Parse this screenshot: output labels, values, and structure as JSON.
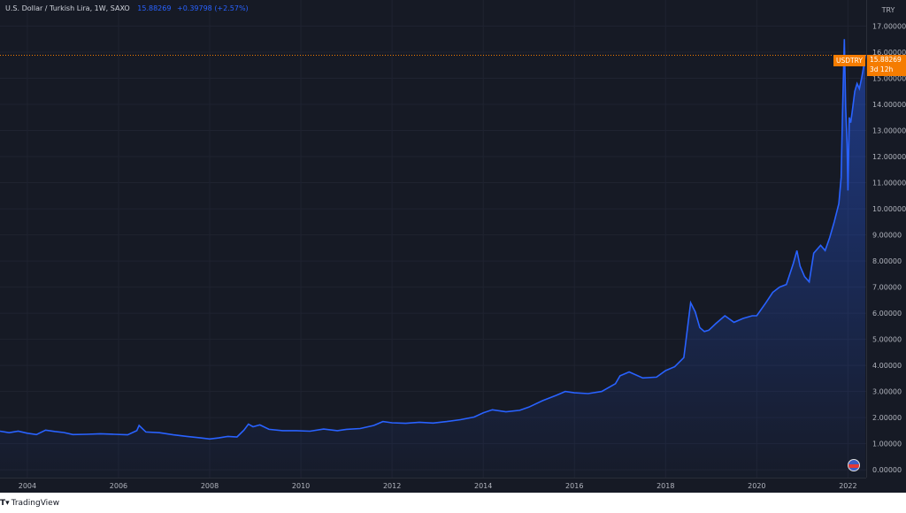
{
  "legend": {
    "title": "U.S. Dollar / Turkish Lira, 1W, SAXO",
    "last_value": "15.88269",
    "change": "+0.39798 (+2.57%)"
  },
  "price_badge": {
    "symbol": "USDTRY",
    "price": "15.88269",
    "countdown": "3d 12h"
  },
  "currency": "TRY",
  "footer": {
    "brand": "TradingView"
  },
  "colors": {
    "background": "#161a25",
    "line": "#2962ff",
    "badge": "#f57c00",
    "text": "#b2b5be",
    "grid": "#1f2330"
  },
  "icons": {
    "flag": "us-flag-icon",
    "logo": "tradingview-logo-icon"
  },
  "chart_data": {
    "type": "area",
    "title": "U.S. Dollar / Turkish Lira, 1W, SAXO",
    "xlabel": "",
    "ylabel": "",
    "xlim": [
      2003.4,
      2022.4
    ],
    "ylim": [
      -0.3,
      18.0
    ],
    "y_ticks": [
      "0.00000",
      "1.00000",
      "2.00000",
      "3.00000",
      "4.00000",
      "5.00000",
      "6.00000",
      "7.00000",
      "8.00000",
      "9.00000",
      "10.00000",
      "11.00000",
      "12.00000",
      "13.00000",
      "14.00000",
      "15.00000",
      "16.00000",
      "17.00000"
    ],
    "y_tick_values": [
      0,
      1,
      2,
      3,
      4,
      5,
      6,
      7,
      8,
      9,
      10,
      11,
      12,
      13,
      14,
      15,
      16,
      17
    ],
    "x_ticks": [
      "2004",
      "2006",
      "2008",
      "2010",
      "2012",
      "2014",
      "2016",
      "2018",
      "2020",
      "2022"
    ],
    "x_tick_values": [
      2004,
      2006,
      2008,
      2010,
      2012,
      2014,
      2016,
      2018,
      2020,
      2022
    ],
    "last_price": 15.88269,
    "grid": true,
    "series": [
      {
        "x": [
          2003.4,
          2003.6,
          2003.8,
          2004.0,
          2004.2,
          2004.4,
          2004.6,
          2004.8,
          2005.0,
          2005.3,
          2005.6,
          2005.9,
          2006.2,
          2006.4,
          2006.45,
          2006.6,
          2006.9,
          2007.2,
          2007.5,
          2007.8,
          2008.0,
          2008.2,
          2008.4,
          2008.6,
          2008.75,
          2008.85,
          2008.95,
          2009.1,
          2009.3,
          2009.6,
          2009.9,
          2010.2,
          2010.5,
          2010.8,
          2011.0,
          2011.3,
          2011.6,
          2011.8,
          2012.0,
          2012.3,
          2012.6,
          2012.9,
          2013.2,
          2013.5,
          2013.8,
          2014.0,
          2014.2,
          2014.5,
          2014.8,
          2015.0,
          2015.3,
          2015.6,
          2015.8,
          2016.0,
          2016.3,
          2016.6,
          2016.9,
          2017.0,
          2017.2,
          2017.5,
          2017.8,
          2018.0,
          2018.2,
          2018.4,
          2018.55,
          2018.65,
          2018.75,
          2018.85,
          2018.95,
          2019.1,
          2019.3,
          2019.5,
          2019.7,
          2019.9,
          2020.0,
          2020.2,
          2020.35,
          2020.5,
          2020.65,
          2020.8,
          2020.88,
          2020.95,
          2021.05,
          2021.15,
          2021.25,
          2021.4,
          2021.5,
          2021.6,
          2021.7,
          2021.8,
          2021.85,
          2021.88,
          2021.92,
          2021.95,
          2021.98,
          2022.0,
          2022.03,
          2022.06,
          2022.1,
          2022.15,
          2022.2,
          2022.25,
          2022.3,
          2022.33,
          2022.38
        ],
        "values": [
          1.48,
          1.42,
          1.48,
          1.4,
          1.35,
          1.52,
          1.47,
          1.43,
          1.35,
          1.36,
          1.38,
          1.36,
          1.34,
          1.5,
          1.7,
          1.45,
          1.42,
          1.34,
          1.28,
          1.22,
          1.18,
          1.22,
          1.28,
          1.26,
          1.52,
          1.75,
          1.65,
          1.72,
          1.55,
          1.5,
          1.5,
          1.48,
          1.56,
          1.5,
          1.55,
          1.58,
          1.7,
          1.85,
          1.8,
          1.78,
          1.82,
          1.79,
          1.85,
          1.92,
          2.02,
          2.18,
          2.3,
          2.22,
          2.28,
          2.4,
          2.65,
          2.85,
          3.0,
          2.95,
          2.92,
          3.0,
          3.3,
          3.6,
          3.75,
          3.52,
          3.55,
          3.8,
          3.95,
          4.3,
          6.4,
          6.05,
          5.45,
          5.3,
          5.35,
          5.6,
          5.9,
          5.65,
          5.8,
          5.9,
          5.9,
          6.4,
          6.8,
          7.0,
          7.1,
          7.9,
          8.4,
          7.8,
          7.4,
          7.2,
          8.3,
          8.6,
          8.4,
          8.9,
          9.5,
          10.2,
          11.2,
          13.6,
          16.5,
          13.9,
          12.5,
          10.7,
          13.5,
          13.3,
          13.8,
          14.5,
          14.8,
          14.6,
          15.0,
          15.3,
          15.88
        ]
      }
    ]
  }
}
